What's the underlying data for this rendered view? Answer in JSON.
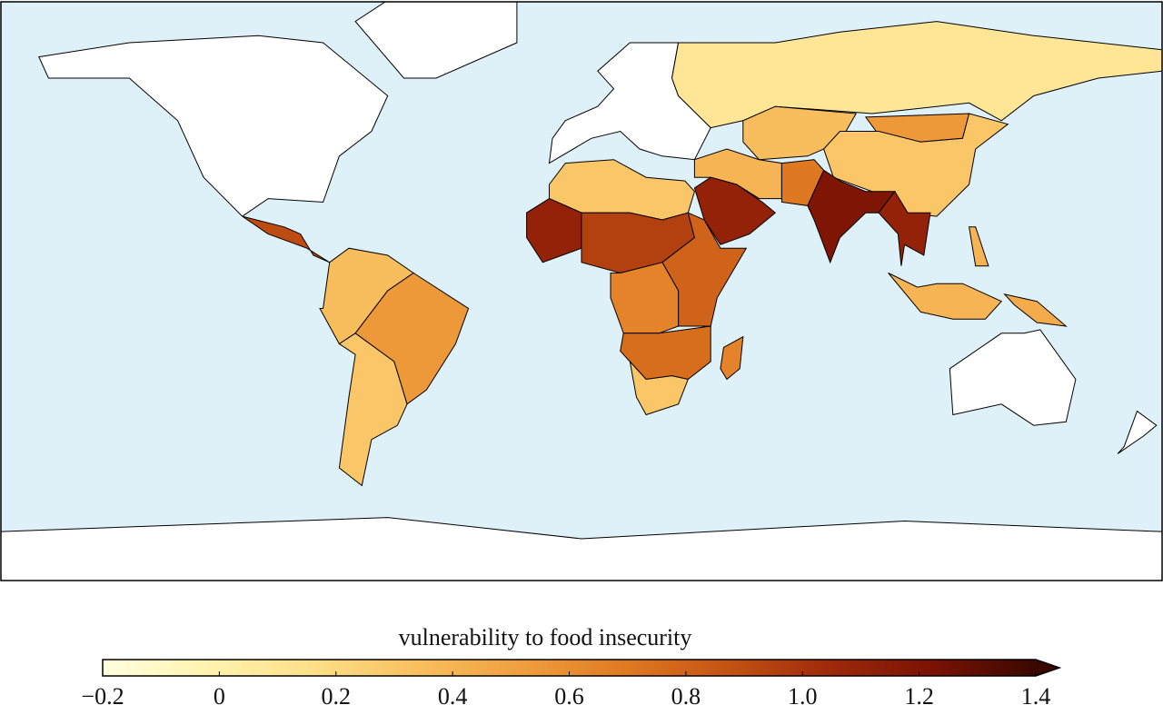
{
  "map": {
    "colorbar_title": "vulnerability to food insecurity",
    "clim": [
      -0.2,
      1.4
    ],
    "ticks": [
      {
        "value": -0.2,
        "label": "−0.2"
      },
      0,
      0.2,
      0.4,
      0.6,
      0.8,
      {
        "value": 1,
        "label": "1.0"
      },
      1.2,
      1.4
    ],
    "colormap": [
      "#ffffe0",
      "#fff3b0",
      "#fde08a",
      "#f9c060",
      "#f0a040",
      "#e07b22",
      "#c55414",
      "#9e2a0a",
      "#7a1204",
      "#3a0800"
    ],
    "no_data_color": "#ffffff",
    "ocean_color": "#dff1f8",
    "values": [
      0.1,
      0.35,
      0.55,
      0.3,
      0.4,
      0.7,
      1.1,
      1.2,
      1.1,
      0.4,
      0.4,
      0.45,
      0.3,
      1.1,
      0.95,
      0.8,
      0.65,
      0.75,
      0.3,
      0.65,
      0.9,
      0.35,
      0.55,
      0.3
    ]
  }
}
